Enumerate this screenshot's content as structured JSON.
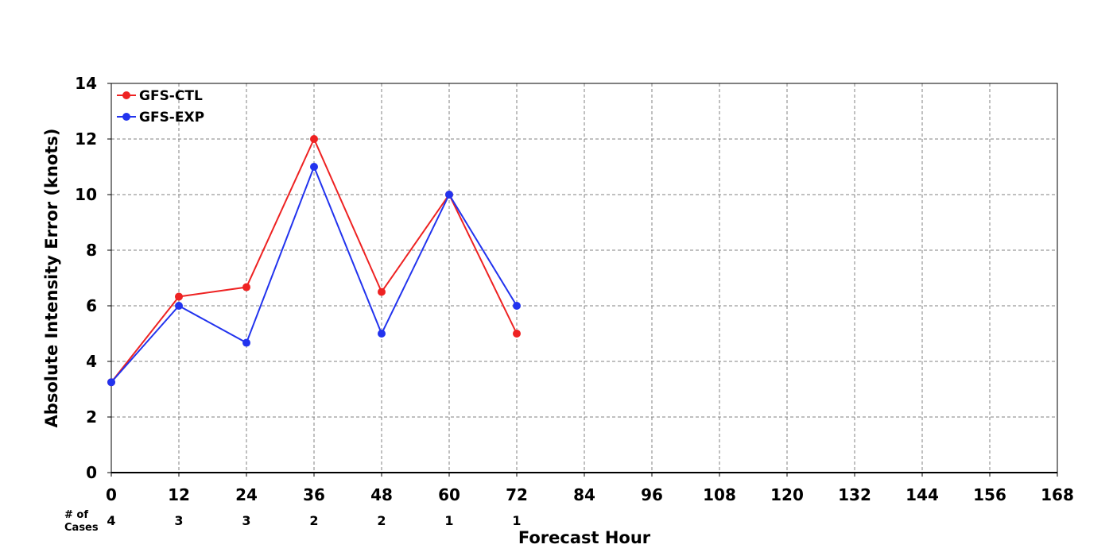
{
  "chart_data": {
    "type": "line",
    "xlabel": "Forecast Hour",
    "ylabel": "Absolute Intensity Error (knots)",
    "xlim": [
      0,
      168
    ],
    "ylim": [
      0,
      14
    ],
    "xticks": [
      0,
      12,
      24,
      36,
      48,
      60,
      72,
      84,
      96,
      108,
      120,
      132,
      144,
      156,
      168
    ],
    "yticks": [
      0,
      2,
      4,
      6,
      8,
      10,
      12,
      14
    ],
    "grid": "dashed",
    "legend_position": "top-left",
    "series": [
      {
        "name": "GFS-CTL",
        "color": "#ee2222",
        "x": [
          0,
          12,
          24,
          36,
          48,
          60,
          72
        ],
        "y": [
          3.25,
          6.33,
          6.67,
          12.0,
          6.5,
          10.0,
          5.0
        ]
      },
      {
        "name": "GFS-EXP",
        "color": "#2233ee",
        "x": [
          0,
          12,
          24,
          36,
          48,
          60,
          72
        ],
        "y": [
          3.25,
          6.0,
          4.67,
          11.0,
          5.0,
          10.0,
          6.0
        ]
      }
    ],
    "cases": {
      "label_line1": "# of",
      "label_line2": "Cases",
      "x": [
        0,
        12,
        24,
        36,
        48,
        60,
        72
      ],
      "counts": [
        "4",
        "3",
        "3",
        "2",
        "2",
        "1",
        "1"
      ]
    }
  }
}
